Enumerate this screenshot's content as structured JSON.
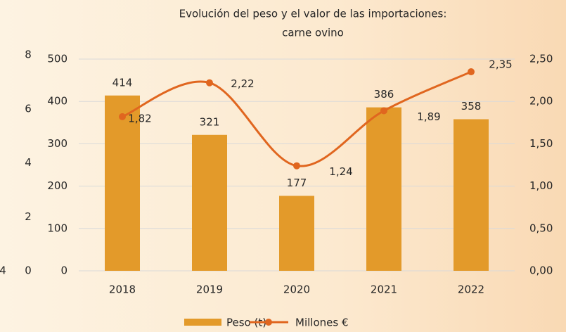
{
  "chart_data": {
    "type": "bar_line",
    "title_lines": [
      "Evolución del peso y el valor de las importaciones:",
      "carne ovino"
    ],
    "categories": [
      "2018",
      "2019",
      "2020",
      "2021",
      "2022"
    ],
    "series": [
      {
        "name": "Peso (t)",
        "color": "#e39a2a",
        "kind": "bar",
        "values": [
          414,
          321,
          177,
          386,
          358
        ]
      },
      {
        "name": "Millones €",
        "color": "#e0661f",
        "kind": "line",
        "axis": "y2",
        "values": [
          1.82,
          2.22,
          1.24,
          1.89,
          2.35
        ],
        "value_labels": [
          "1,82",
          "2,22",
          "1,24",
          "1,89",
          "2,35"
        ]
      }
    ],
    "ylim": [
      0,
      500
    ],
    "yticks": [
      0,
      100,
      200,
      300,
      400,
      500
    ],
    "y2lim": [
      0,
      2.5
    ],
    "y2ticks": [
      {
        "value": 0,
        "label": "0,00"
      },
      {
        "value": 0.5,
        "label": "0,50"
      },
      {
        "value": 1,
        "label": "1,00"
      },
      {
        "value": 1.5,
        "label": "1,50"
      },
      {
        "value": 2,
        "label": "2,00"
      },
      {
        "value": 2.5,
        "label": "2,50"
      }
    ],
    "grid": true,
    "legend": "bottom"
  },
  "overlap_axis": {
    "ylim": [
      0,
      8
    ],
    "yticks": [
      0,
      2,
      4,
      6,
      8
    ]
  },
  "fragments": [
    "4"
  ]
}
